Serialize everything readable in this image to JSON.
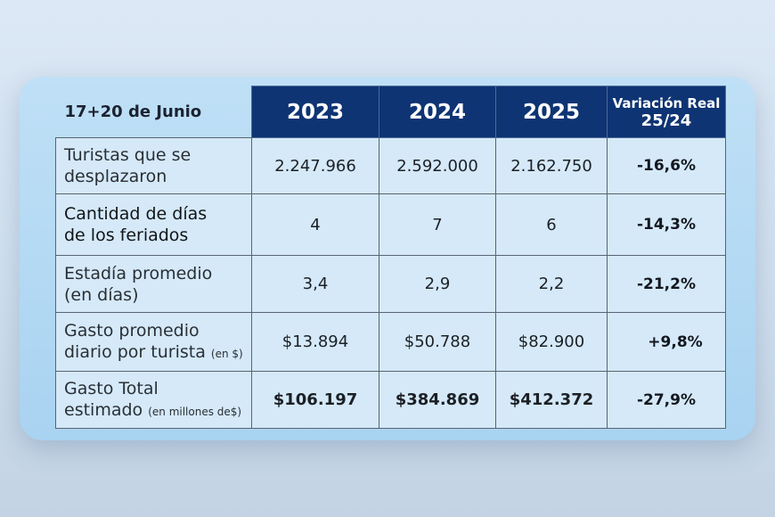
{
  "table": {
    "corner_label": "17+20 de Junio",
    "years": [
      "2023",
      "2024",
      "2025"
    ],
    "variation_header": {
      "line1": "Variación Real",
      "line2": "25/24"
    },
    "rows": [
      {
        "label_line1": "Turistas que se",
        "label_line2": "desplazaron",
        "note": "",
        "values": [
          "2.247.966",
          "2.592.000",
          "2.162.750"
        ],
        "variation": "-16,6%"
      },
      {
        "label_line1": "Cantidad de días",
        "label_line2": "de los feriados",
        "note": "",
        "values": [
          "4",
          "7",
          "6"
        ],
        "variation": "-14,3%"
      },
      {
        "label_line1": "Estadía promedio",
        "label_line2": "(en días)",
        "note": "",
        "values": [
          "3,4",
          "2,9",
          "2,2"
        ],
        "variation": "-21,2%"
      },
      {
        "label_line1": "Gasto promedio",
        "label_line2": "diario por turista",
        "note": "(en $)",
        "values": [
          "$13.894",
          "$50.788",
          "$82.900"
        ],
        "variation": "+9,8%"
      },
      {
        "label_line1": "Gasto Total",
        "label_line2": "estimado",
        "note": "(en millones de$)",
        "values": [
          "$106.197",
          "$384.869",
          "$412.372"
        ],
        "variation": "-27,9%"
      }
    ]
  }
}
